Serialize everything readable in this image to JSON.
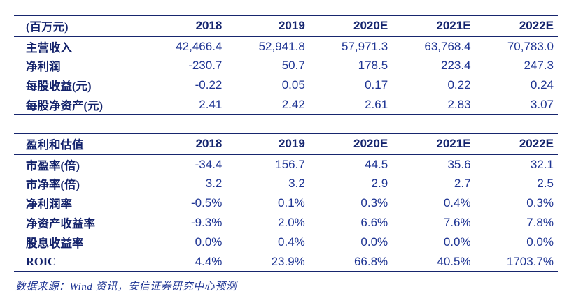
{
  "colors": {
    "rule_line": "#17266e",
    "header_text": "#14246e",
    "label_text": "#13226b",
    "number_text": "#1e3493"
  },
  "table1": {
    "unit_label": "(百万元)",
    "columns": [
      "2018",
      "2019",
      "2020E",
      "2021E",
      "2022E"
    ],
    "rows": [
      {
        "label": "主营收入",
        "values": [
          "42,466.4",
          "52,941.8",
          "57,971.3",
          "63,768.4",
          "70,783.0"
        ]
      },
      {
        "label": "净利润",
        "values": [
          "-230.7",
          "50.7",
          "178.5",
          "223.4",
          "247.3"
        ]
      },
      {
        "label": "每股收益(元)",
        "values": [
          "-0.22",
          "0.05",
          "0.17",
          "0.22",
          "0.24"
        ]
      },
      {
        "label": "每股净资产(元)",
        "values": [
          "2.41",
          "2.42",
          "2.61",
          "2.83",
          "3.07"
        ]
      }
    ]
  },
  "table2": {
    "header_label": "盈利和估值",
    "columns": [
      "2018",
      "2019",
      "2020E",
      "2021E",
      "2022E"
    ],
    "rows": [
      {
        "label": "市盈率(倍)",
        "values": [
          "-34.4",
          "156.7",
          "44.5",
          "35.6",
          "32.1"
        ]
      },
      {
        "label": "市净率(倍)",
        "values": [
          "3.2",
          "3.2",
          "2.9",
          "2.7",
          "2.5"
        ]
      },
      {
        "label": "净利润率",
        "values": [
          "-0.5%",
          "0.1%",
          "0.3%",
          "0.4%",
          "0.3%"
        ]
      },
      {
        "label": "净资产收益率",
        "values": [
          "-9.3%",
          "2.0%",
          "6.6%",
          "7.6%",
          "7.8%"
        ]
      },
      {
        "label": "股息收益率",
        "values": [
          "0.0%",
          "0.4%",
          "0.0%",
          "0.0%",
          "0.0%"
        ]
      },
      {
        "label": "ROIC",
        "values": [
          "4.4%",
          "23.9%",
          "66.8%",
          "40.5%",
          "1703.7%"
        ]
      }
    ]
  },
  "footer": {
    "source_note": "数据来源：Wind 资讯，安信证券研究中心预测"
  }
}
